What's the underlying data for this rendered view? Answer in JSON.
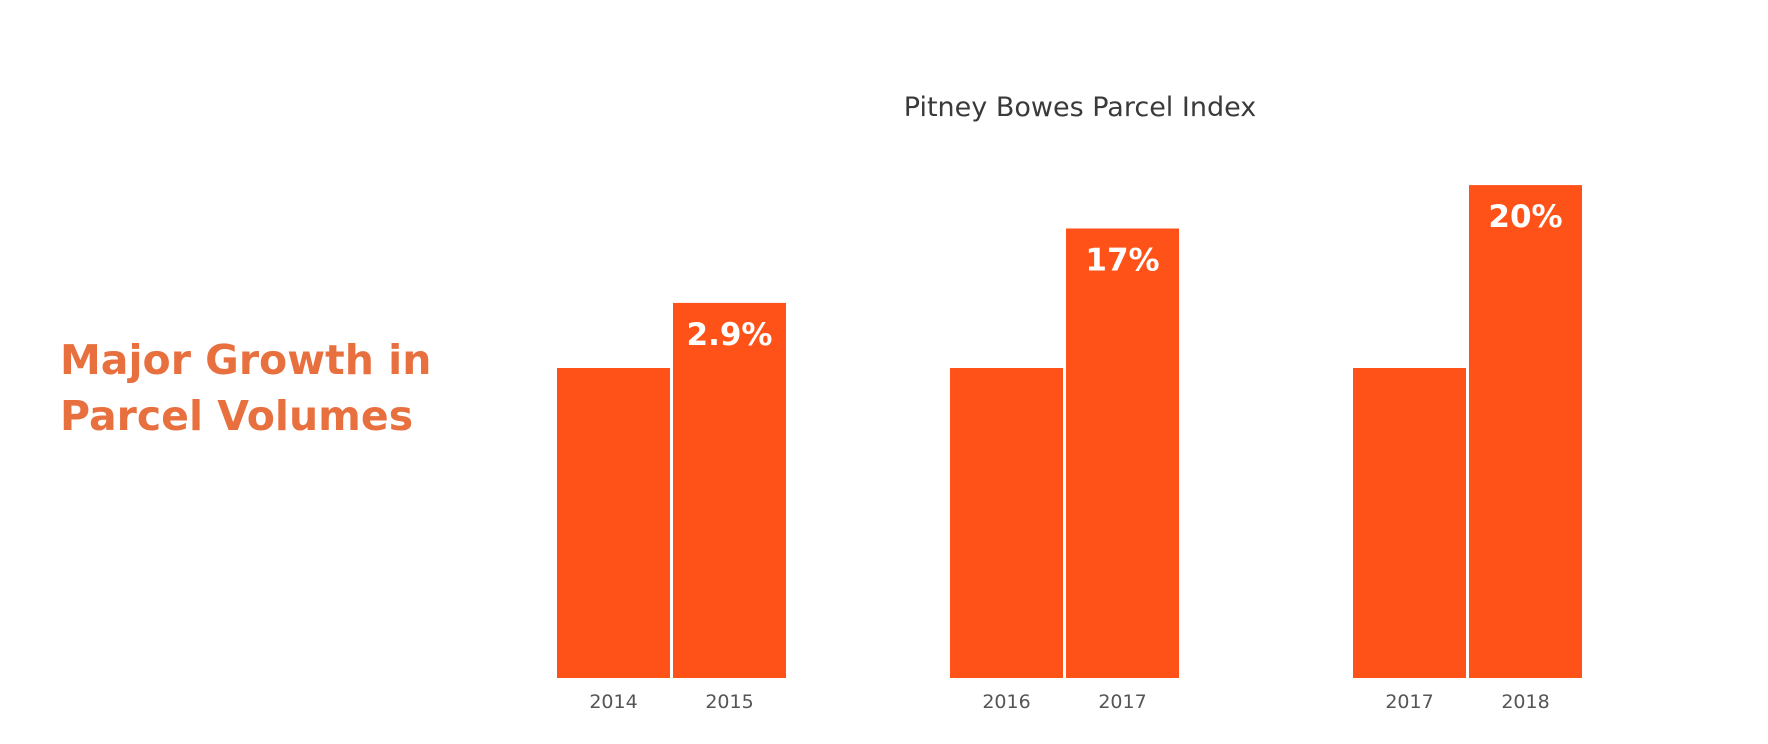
{
  "slide": {
    "heading_line1": "Major Growth in",
    "heading_line2": "Parcel Volumes"
  },
  "chart_data": {
    "type": "bar",
    "title": "Pitney Bowes Parcel Index",
    "xlabel": "",
    "ylabel": "",
    "grid": false,
    "bar_color": "#FF5219",
    "heading_color": "#E8703F",
    "groups": [
      {
        "bars": [
          {
            "year": "2014",
            "value": 100,
            "label": ""
          },
          {
            "year": "2015",
            "value": 121,
            "label": "2.9%"
          }
        ]
      },
      {
        "bars": [
          {
            "year": "2016",
            "value": 100,
            "label": ""
          },
          {
            "year": "2017",
            "value": 145,
            "label": "17%"
          }
        ]
      },
      {
        "bars": [
          {
            "year": "2017",
            "value": 100,
            "label": ""
          },
          {
            "year": "2018",
            "value": 159,
            "label": "20%"
          }
        ]
      }
    ]
  }
}
